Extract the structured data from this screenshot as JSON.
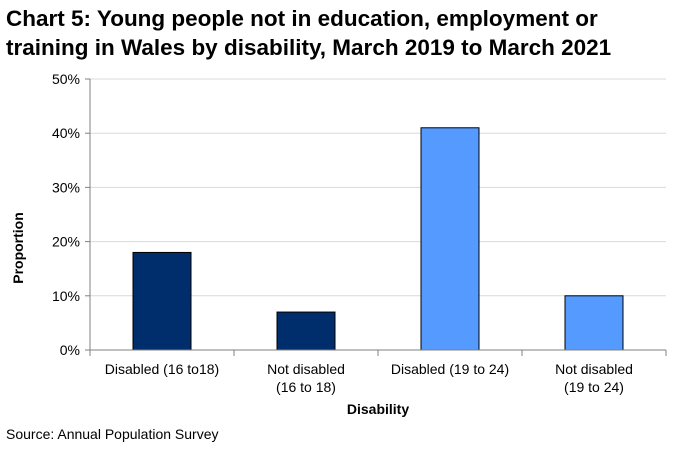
{
  "chart_data": {
    "type": "bar",
    "title_lines": [
      "Chart 5: Young people not in education, employment or",
      "training in Wales by disability, March 2019 to March 2021"
    ],
    "categories": [
      [
        "Disabled (16 to18)"
      ],
      [
        "Not disabled",
        "(16 to 18)"
      ],
      [
        "Disabled (19 to 24)"
      ],
      [
        "Not disabled",
        "(19 to 24)"
      ]
    ],
    "values": [
      18,
      7,
      41,
      10
    ],
    "bar_colors": [
      "#002d6b",
      "#002d6b",
      "#559bff",
      "#559bff"
    ],
    "xlabel": "Disability",
    "ylabel": "Proportion",
    "ylim": [
      0,
      50
    ],
    "yticks": [
      "0%",
      "10%",
      "20%",
      "30%",
      "40%",
      "50%"
    ],
    "grid": true
  },
  "footer": {
    "source": "Source: Annual Population Survey"
  },
  "colors": {
    "grid": "#d9d9d9",
    "axis": "#808080",
    "bar_border": "#000000"
  }
}
